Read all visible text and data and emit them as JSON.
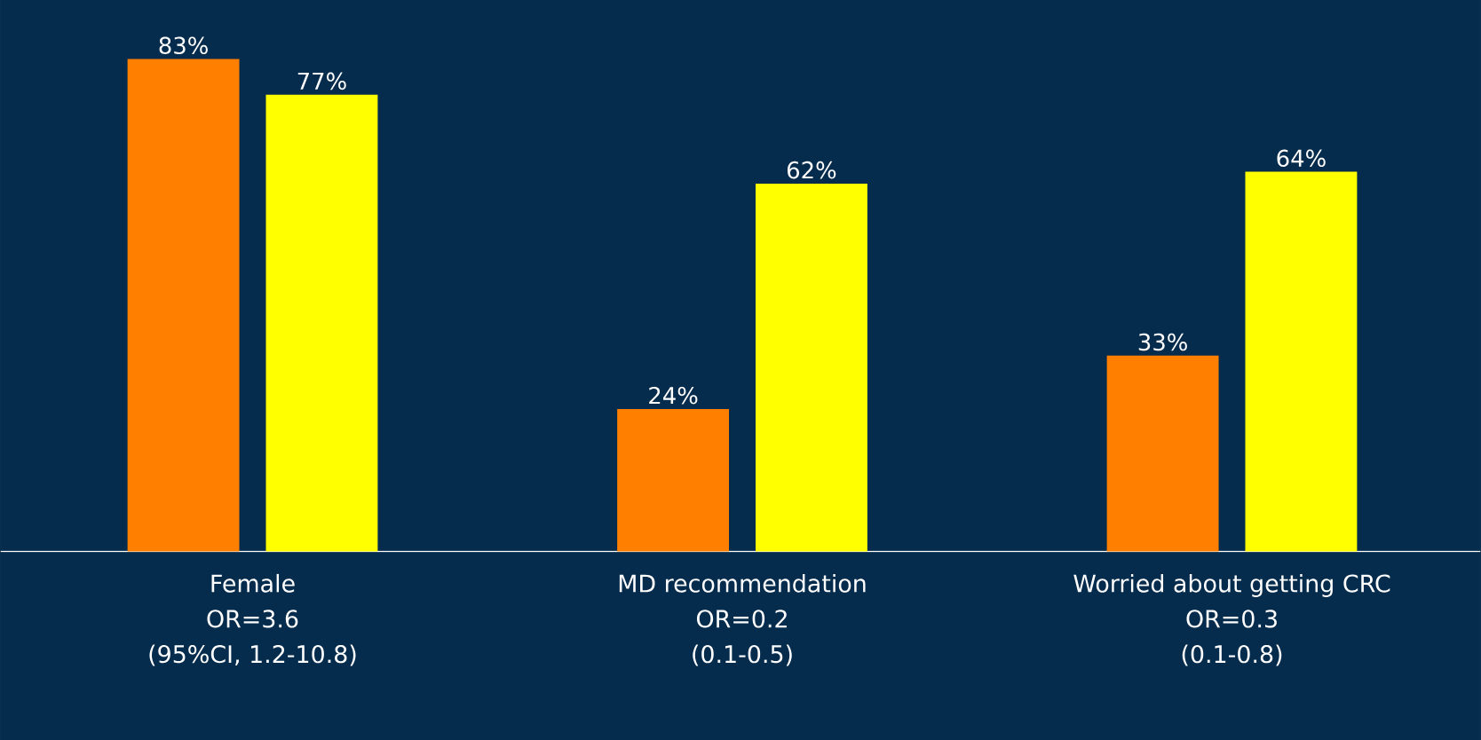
{
  "chart_data": {
    "type": "bar",
    "categories": [
      "Female",
      "MD recommendation",
      "Worried about getting CRC"
    ],
    "series": [
      {
        "color": "#ff7f00",
        "values": [
          83,
          24,
          33
        ],
        "value_labels": [
          "83%",
          "24%",
          "33%"
        ]
      },
      {
        "color": "#ffff00",
        "values": [
          77,
          62,
          64
        ],
        "value_labels": [
          "77%",
          "62%",
          "64%"
        ]
      }
    ],
    "annotations": [
      "OR=3.6",
      "(95%CI, 1.2-10.8)",
      "OR=0.2",
      "(0.1-0.5)",
      "OR=0.3",
      "(0.1-0.8)"
    ]
  }
}
